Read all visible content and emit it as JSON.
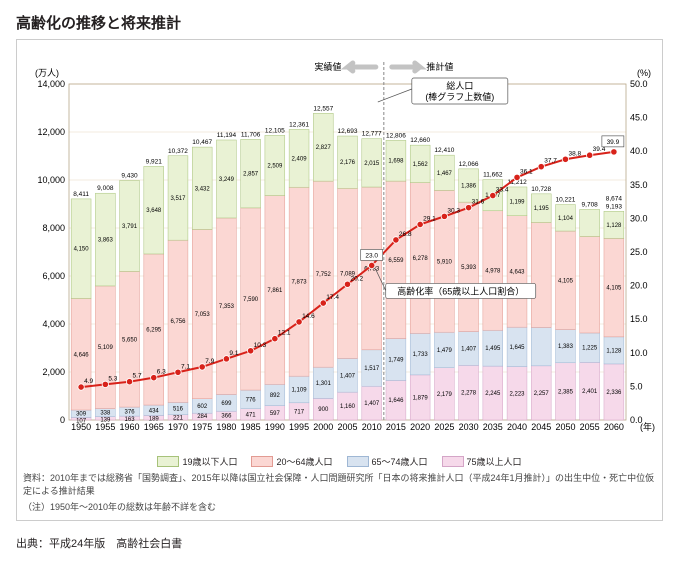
{
  "title": "高齢化の推移と将来推計",
  "yLeftLabel": "(万人)",
  "yRightLabel": "(%)",
  "actualLabel": "実績値",
  "projectedLabel": "推計値",
  "annotTotal": "総人口\n(棒グラフ上数値)",
  "annotRatio": "高齢化率（65歳以上人口割合）",
  "legend": [
    {
      "label": "19歳以下人口",
      "color": "#e9f2d4",
      "border": "#a7c27a"
    },
    {
      "label": "20～64歳人口",
      "color": "#fbd7d3",
      "border": "#e29b93"
    },
    {
      "label": "65～74歳人口",
      "color": "#d8e3f0",
      "border": "#9fb7d4"
    },
    {
      "label": "75歳以上人口",
      "color": "#f6d9ea",
      "border": "#d4a5c7"
    }
  ],
  "colors": {
    "grid": "#e8d8c0",
    "axis": "#b8a88a",
    "line": "#d8221a",
    "marker": "#d8221a",
    "divider": "#888"
  },
  "yLeft": {
    "min": 0,
    "max": 14000,
    "step": 2000
  },
  "yRight": {
    "min": 0,
    "max": 50,
    "step": 5
  },
  "years": [
    "1950",
    "1955",
    "1960",
    "1965",
    "1970",
    "1975",
    "1980",
    "1985",
    "1990",
    "1995",
    "2000",
    "2005",
    "2010",
    "2015",
    "2020",
    "2025",
    "2030",
    "2035",
    "2040",
    "2045",
    "2050",
    "2055",
    "2060"
  ],
  "segShow": [
    4150,
    3863,
    3791,
    3648,
    3517,
    3432,
    3249,
    2857,
    2509,
    2409,
    2827,
    2176,
    2015,
    1698,
    1562,
    1467,
    1386,
    1297,
    1199,
    1195,
    1104,
    1129,
    1128
  ],
  "seg20": [
    4646,
    5109,
    5650,
    6295,
    6756,
    7053,
    7353,
    7590,
    7861,
    7873,
    7752,
    7089,
    6783,
    6559,
    6278,
    5910,
    5393,
    4978,
    4643,
    4371,
    4105,
    4020,
    4105
  ],
  "seg65": [
    309,
    338,
    376,
    434,
    516,
    602,
    699,
    776,
    892,
    1109,
    1301,
    1407,
    1517,
    1749,
    1733,
    1479,
    1407,
    1495,
    1645,
    1600,
    1383,
    1225,
    1128
  ],
  "seg75": [
    107,
    139,
    163,
    189,
    221,
    284,
    366,
    471,
    597,
    717,
    900,
    1160,
    1407,
    1646,
    1879,
    2179,
    2278,
    2245,
    2223,
    2257,
    2385,
    2401,
    2336
  ],
  "seg20Text": [
    "4,646",
    "5,109",
    "5,650",
    "6,295",
    "6,756",
    "7,053",
    "7,353",
    "7,590",
    "7,861",
    "7,873",
    "7,752",
    "7,089",
    "6,783",
    "6,559",
    "6,278",
    "5,910",
    "5,393",
    "4,978",
    "4,643",
    "",
    "4,105",
    "",
    "4,105"
  ],
  "segShowText": [
    "4,150",
    "3,863",
    "3,791",
    "3,648",
    "3,517",
    "3,432",
    "3,249",
    "2,857",
    "2,509",
    "2,409",
    "2,827",
    "2,176",
    "2,015",
    "1,698",
    "1,562",
    "1,467",
    "1,386",
    "1,297",
    "1,199",
    "1,195",
    "1,104",
    "",
    "1,128"
  ],
  "seg65Text": [
    "309",
    "338",
    "376",
    "434",
    "516",
    "602",
    "699",
    "776",
    "892",
    "1,109",
    "1,301",
    "1,407",
    "1,517",
    "1,749",
    "1,733",
    "1,479",
    "1,407",
    "1,495",
    "1,645",
    "",
    "1,383",
    "1,225",
    "1,128"
  ],
  "seg75Text": [
    "107",
    "139",
    "163",
    "189",
    "221",
    "284",
    "366",
    "471",
    "597",
    "717",
    "900",
    "1,160",
    "1,407",
    "1,646",
    "1,879",
    "2,179",
    "2,278",
    "2,245",
    "2,223",
    "2,257",
    "2,385",
    "2,401",
    "2,336"
  ],
  "totals": [
    "8,411",
    "9,008",
    "9,430",
    "9,921",
    "10,372",
    "10,467",
    "11,194",
    "11,706",
    "12,105",
    "12,361",
    "12,557",
    "12,693",
    "12,777",
    "12,806",
    "12,660",
    "12,410",
    "12,066",
    "11,662",
    "11,212",
    "10,728",
    "10,221",
    "9,708",
    "9,193"
  ],
  "extraTop": [
    "",
    "",
    "",
    "",
    "",
    "",
    "",
    "",
    "",
    "",
    "",
    "",
    "",
    "",
    "",
    "",
    "",
    "",
    "",
    "",
    "",
    "",
    "8,674"
  ],
  "ratio": [
    4.9,
    5.3,
    5.7,
    6.3,
    7.1,
    7.9,
    9.1,
    10.3,
    12.1,
    14.6,
    17.4,
    20.2,
    23.0,
    26.8,
    29.1,
    30.3,
    31.6,
    33.4,
    36.1,
    37.7,
    38.8,
    39.4,
    39.9
  ],
  "specialPct": {
    "2000": "(59.0%)",
    "2005": "(18.0%)",
    "2010": "(11.9%)",
    "2060a": "(12.7%)",
    "2060b": "(47.3%)",
    "2060c": "(13.0%)",
    "2060d": "(26.9%)"
  },
  "note1": "資料：2010年までは総務省「国勢調査」、2015年以降は国立社会保障・人口問題研究所「日本の将来推計人口（平成24年1月推計）」の出生中位・死亡中位仮定による推計結果",
  "note2": "（注）1950年～2010年の総数は年齢不詳を含む",
  "source": "出典：平成24年版　高齢社会白書"
}
